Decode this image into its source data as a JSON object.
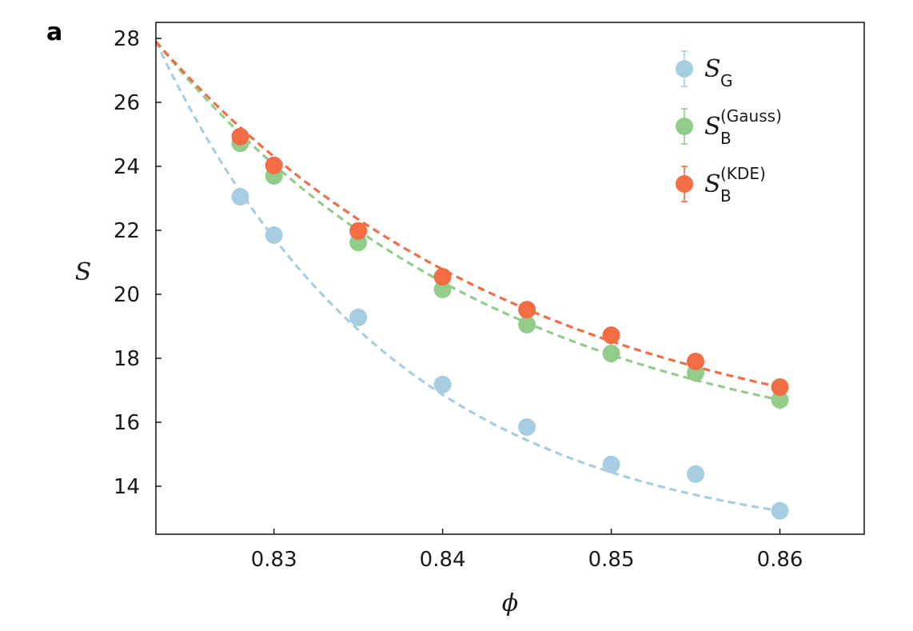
{
  "chart_data": {
    "type": "scatter",
    "panel_label": "a",
    "xlabel": "ϕ",
    "ylabel": "S",
    "xlim": [
      0.823,
      0.865
    ],
    "ylim": [
      12.5,
      28.5
    ],
    "xticks": [
      0.83,
      0.84,
      0.85,
      0.86
    ],
    "xtick_labels": [
      "0.83",
      "0.84",
      "0.85",
      "0.86"
    ],
    "yticks": [
      14,
      16,
      18,
      20,
      22,
      24,
      26,
      28
    ],
    "ytick_labels": [
      "14",
      "16",
      "18",
      "20",
      "22",
      "24",
      "26",
      "28"
    ],
    "grid": false,
    "legend_position": "top-right",
    "series": [
      {
        "name": "S_G",
        "legend_main": "S",
        "legend_sub": "G",
        "legend_sup": "",
        "color": "#a6cde2",
        "x": [
          0.828,
          0.83,
          0.835,
          0.84,
          0.845,
          0.85,
          0.855,
          0.86
        ],
        "y": [
          23.05,
          21.85,
          19.28,
          17.18,
          15.85,
          14.68,
          14.38,
          13.23
        ],
        "err": [
          0.1,
          0.1,
          0.1,
          0.1,
          0.1,
          0.1,
          0.1,
          0.1
        ],
        "fit": {
          "a": 24.5,
          "b": 2.61,
          "c": -5.19,
          "x0": 0.823
        }
      },
      {
        "name": "S_B^(Gauss)",
        "legend_main": "S",
        "legend_sub": "B",
        "legend_sup": "(Gauss)",
        "color": "#92cc8b",
        "x": [
          0.828,
          0.83,
          0.835,
          0.84,
          0.845,
          0.85,
          0.855,
          0.86
        ],
        "y": [
          24.72,
          23.7,
          21.62,
          20.15,
          19.05,
          18.15,
          17.55,
          16.7
        ],
        "err": [
          0.15,
          0.15,
          0.2,
          0.2,
          0.25,
          0.3,
          0.3,
          0.3
        ],
        "fit": {
          "a": 14.27,
          "b": 13.06,
          "c": 0.0,
          "x0": 0.823
        }
      },
      {
        "name": "S_B^(KDE)",
        "legend_main": "S",
        "legend_sub": "B",
        "legend_sup": "(KDE)",
        "color": "#f26c44",
        "x": [
          0.828,
          0.83,
          0.835,
          0.84,
          0.845,
          0.85,
          0.855,
          0.86
        ],
        "y": [
          24.93,
          24.03,
          21.98,
          20.55,
          19.52,
          18.72,
          17.9,
          17.1
        ],
        "err": [
          0.15,
          0.15,
          0.15,
          0.15,
          0.15,
          0.15,
          0.15,
          0.15
        ],
        "fit": {
          "a": 13.54,
          "b": 14.26,
          "c": 2.17,
          "x0": 0.823
        }
      }
    ]
  }
}
